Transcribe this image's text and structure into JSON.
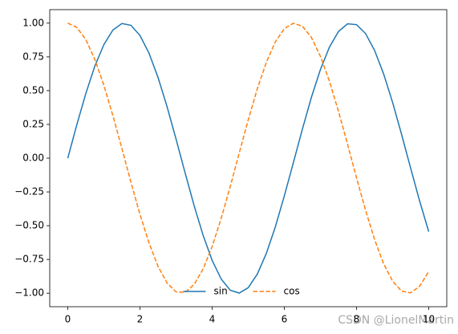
{
  "chart_data": {
    "type": "line",
    "x": [
      0,
      0.25,
      0.5,
      0.75,
      1,
      1.25,
      1.5,
      1.75,
      2,
      2.25,
      2.5,
      2.75,
      3,
      3.25,
      3.5,
      3.75,
      4,
      4.25,
      4.5,
      4.75,
      5,
      5.25,
      5.5,
      5.75,
      6,
      6.25,
      6.5,
      6.75,
      7,
      7.25,
      7.5,
      7.75,
      8,
      8.25,
      8.5,
      8.75,
      9,
      9.25,
      9.5,
      9.75,
      10
    ],
    "series": [
      {
        "name": "sin",
        "color": "#1f77b4",
        "linestyle": "solid",
        "values": [
          0,
          0.247,
          0.479,
          0.682,
          0.841,
          0.949,
          0.997,
          0.984,
          0.909,
          0.778,
          0.598,
          0.382,
          0.141,
          -0.108,
          -0.351,
          -0.572,
          -0.757,
          -0.895,
          -0.978,
          -0.999,
          -0.959,
          -0.859,
          -0.706,
          -0.509,
          -0.279,
          -0.033,
          0.215,
          0.451,
          0.657,
          0.823,
          0.938,
          0.995,
          0.989,
          0.923,
          0.798,
          0.624,
          0.412,
          0.174,
          -0.075,
          -0.319,
          -0.544
        ]
      },
      {
        "name": "cos",
        "color": "#ff7f0e",
        "linestyle": "dashed",
        "values": [
          1,
          0.969,
          0.878,
          0.732,
          0.54,
          0.315,
          0.071,
          -0.178,
          -0.416,
          -0.628,
          -0.801,
          -0.924,
          -0.99,
          -0.994,
          -0.936,
          -0.82,
          -0.654,
          -0.446,
          -0.211,
          0.038,
          0.284,
          0.513,
          0.709,
          0.861,
          0.96,
          0.999,
          0.977,
          0.894,
          0.754,
          0.569,
          0.347,
          0.104,
          -0.146,
          -0.386,
          -0.602,
          -0.782,
          -0.911,
          -0.985,
          -0.997,
          -0.948,
          -0.839
        ]
      }
    ],
    "xlim": [
      -0.5,
      10.5
    ],
    "xticks": [
      0,
      2,
      4,
      6,
      8,
      10
    ],
    "ylim": [
      -1.1,
      1.1
    ],
    "yticks": [
      {
        "value": -1,
        "label": "−1.00"
      },
      {
        "value": -0.75,
        "label": "−0.75"
      },
      {
        "value": -0.5,
        "label": "−0.50"
      },
      {
        "value": -0.25,
        "label": "−0.25"
      },
      {
        "value": 0,
        "label": "0.00"
      },
      {
        "value": 0.25,
        "label": "0.25"
      },
      {
        "value": 0.5,
        "label": "0.50"
      },
      {
        "value": 0.75,
        "label": "0.75"
      },
      {
        "value": 1,
        "label": "1.00"
      }
    ],
    "legend": "lower center",
    "watermark": "CSDN @LionelMartin"
  }
}
